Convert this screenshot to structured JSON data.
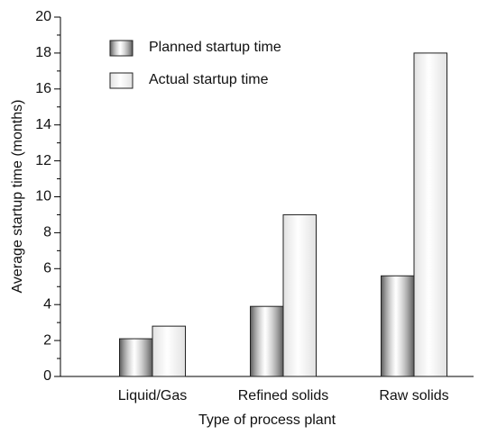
{
  "chart_data": {
    "type": "bar",
    "xlabel": "Type of process plant",
    "ylabel": "Average startup time (months)",
    "categories": [
      "Liquid/Gas",
      "Refined solids",
      "Raw solids"
    ],
    "series": [
      {
        "name": "Planned startup time",
        "color": "#5a5a5a",
        "values": [
          2.1,
          3.9,
          5.6
        ]
      },
      {
        "name": "Actual startup time",
        "color": "#e2e2e2",
        "values": [
          2.8,
          9.0,
          18.0
        ]
      }
    ],
    "ylim": [
      0,
      20
    ],
    "yticks": [
      0,
      2,
      4,
      6,
      8,
      10,
      12,
      14,
      16,
      18,
      20
    ],
    "yticks_minor": [
      1,
      3,
      5,
      7,
      9,
      11,
      13,
      15,
      17,
      19
    ],
    "legend": "upper left"
  }
}
